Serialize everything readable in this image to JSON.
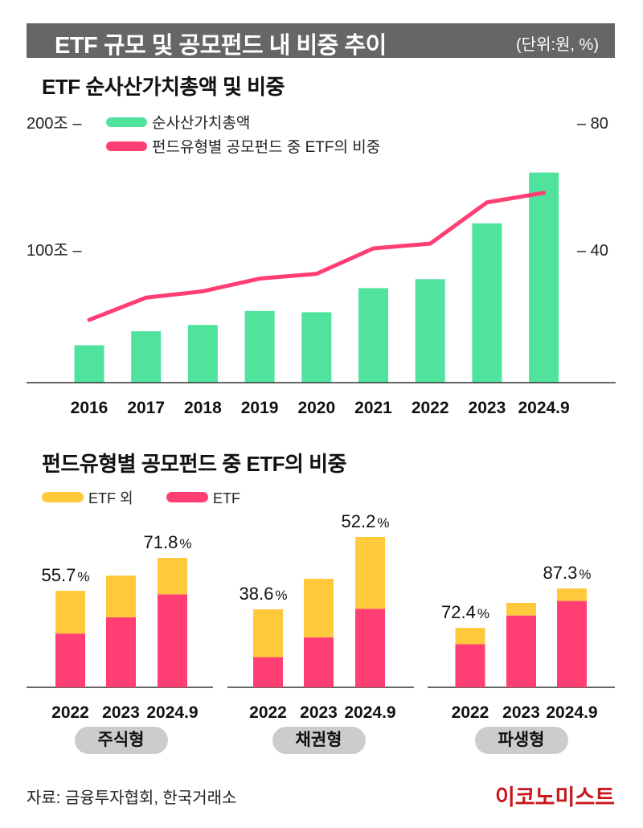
{
  "header": {
    "title": "ETF 규모 및 공모펀드 내 비중 추이",
    "unit": "(단위:원, %)"
  },
  "colors": {
    "header_bg": "#666666",
    "nav_bar": "#4FE39E",
    "etf_share_line": "#FF3F73",
    "non_etf": "#FFC93C",
    "etf": "#FF3F73",
    "pill_bg": "#CCCCCC",
    "brand": "#C8161D"
  },
  "footer": {
    "source": "자료: 금융투자협회, 한국거래소",
    "brand": "이코노미스트"
  },
  "chart_data": [
    {
      "type": "bar+line",
      "title": "ETF 순사산가치총액 및 비중",
      "categories": [
        "2016",
        "2017",
        "2018",
        "2019",
        "2020",
        "2021",
        "2022",
        "2023",
        "2024.9"
      ],
      "series": [
        {
          "name": "순사산가치총액",
          "type": "bar",
          "axis": "left",
          "unit": "조원",
          "values": [
            25,
            36,
            41,
            52,
            51,
            70,
            77,
            121,
            161
          ]
        },
        {
          "name": "펀드유형별 공모펀드 중 ETF의 비중",
          "type": "line",
          "axis": "right",
          "unit": "%",
          "values": [
            18,
            25,
            27,
            31,
            32.5,
            40.5,
            42,
            55,
            58
          ]
        }
      ],
      "left_axis": {
        "ticks": [
          {
            "value": 100,
            "label": "100조 –"
          },
          {
            "value": 200,
            "label": "200조 –"
          }
        ],
        "range": [
          0,
          200
        ]
      },
      "right_axis": {
        "ticks": [
          {
            "value": 40,
            "label": "– 40"
          },
          {
            "value": 80,
            "label": "– 80"
          }
        ],
        "range": [
          0,
          80
        ]
      },
      "legend": [
        "순사산가치총액",
        "펀드유형별 공모펀드 중 ETF의 비중"
      ],
      "legend_position": "top-left",
      "grid": false
    },
    {
      "type": "bar",
      "stacked": true,
      "title": "펀드유형별 공모펀드 중 ETF의 비중",
      "legend": [
        "ETF 외",
        "ETF"
      ],
      "legend_position": "top-left",
      "note": "Bar height shows relative fund size (no printed axis); pink share is the ETF portion",
      "groups": [
        {
          "name": "주식형",
          "categories": [
            "2022",
            "2023",
            "2024.9"
          ],
          "total_relative": [
            120,
            139,
            161
          ],
          "etf_share_pct": [
            55.7,
            62.6,
            71.8
          ],
          "labels": [
            "55.7",
            "",
            "71.8"
          ]
        },
        {
          "name": "채권형",
          "categories": [
            "2022",
            "2023",
            "2024.9"
          ],
          "total_relative": [
            97,
            135,
            187
          ],
          "etf_share_pct": [
            38.6,
            46,
            52.2
          ],
          "labels": [
            "38.6",
            "",
            "52.2"
          ]
        },
        {
          "name": "파생형",
          "categories": [
            "2022",
            "2023",
            "2024.9"
          ],
          "total_relative": [
            74,
            105,
            123
          ],
          "etf_share_pct": [
            72.4,
            85,
            87.3
          ],
          "labels": [
            "72.4",
            "",
            "87.3"
          ]
        }
      ],
      "percent_sign": "%"
    }
  ]
}
